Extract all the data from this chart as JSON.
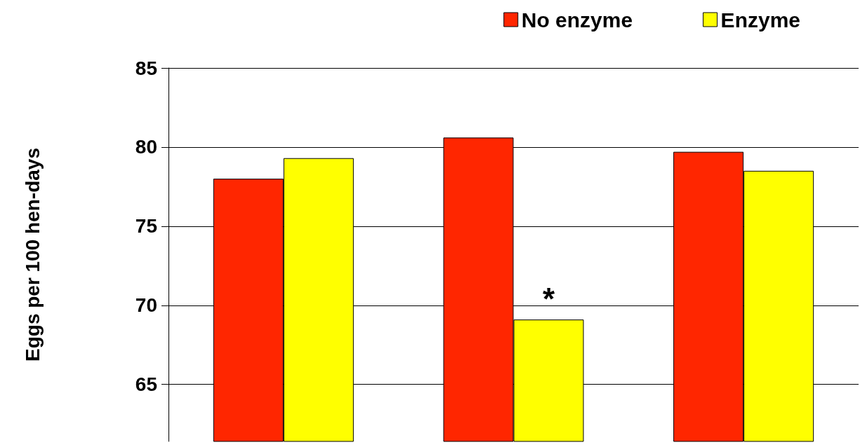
{
  "chart_data": {
    "type": "bar",
    "ylabel": "Eggs per 100 hen-days",
    "categories": [
      null,
      null,
      null
    ],
    "series": [
      {
        "name": "No enzyme",
        "color": "#ff2600",
        "values": [
          78.0,
          80.6,
          79.7
        ]
      },
      {
        "name": "Enzyme",
        "color": "#ffff00",
        "values": [
          79.3,
          69.1,
          78.5
        ]
      }
    ],
    "ylim": [
      61.4,
      85
    ],
    "yticks": [
      65,
      70,
      75,
      80,
      85
    ],
    "grid": "y",
    "legend": "top right",
    "annotations": [
      {
        "text": "*",
        "y": 69.1
      }
    ]
  }
}
